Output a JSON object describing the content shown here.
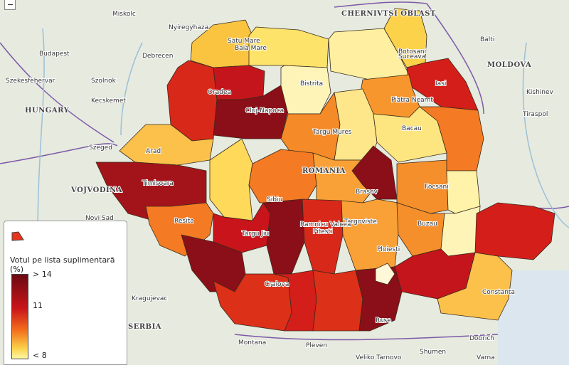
{
  "legend": {
    "title": "Votul pe lista suplimentară (%)",
    "labels": [
      "> 14",
      "11",
      "< 8"
    ]
  },
  "places": [
    "Miskolc",
    "Nyiregyhaza",
    "Budapest",
    "Szekesfehervar",
    "Szolnok",
    "Debrecen",
    "Kecskemet",
    "HUNGARY",
    "Szeged",
    "VOJVODINA",
    "Novi Sad",
    "Kragujevac",
    "SERBIA",
    "MOLDOVA",
    "Balti",
    "Kishinev",
    "Tiraspol",
    "CHERNIVTSI OBLAST",
    "Botosani",
    "Suceava",
    "Baia Mare",
    "Satu Mare",
    "Oradea",
    "Cluj-Napoca",
    "Bistrita",
    "Iasi",
    "Piatra Neamt",
    "Bacau",
    "Targu Mures",
    "Arad",
    "Timisoara",
    "Resita",
    "Sibiu",
    "Brasov",
    "Focsani",
    "Buzau",
    "Ploiesti",
    "Targoviste",
    "Pitesti",
    "Ramnicu Valcea",
    "Targu Jiu",
    "Craiova",
    "Constanta",
    "Ruse",
    "Dobrich",
    "Montana",
    "Pleven",
    "Veliko Tarnovo",
    "Shumen",
    "Varna",
    "ROMANIA"
  ]
}
